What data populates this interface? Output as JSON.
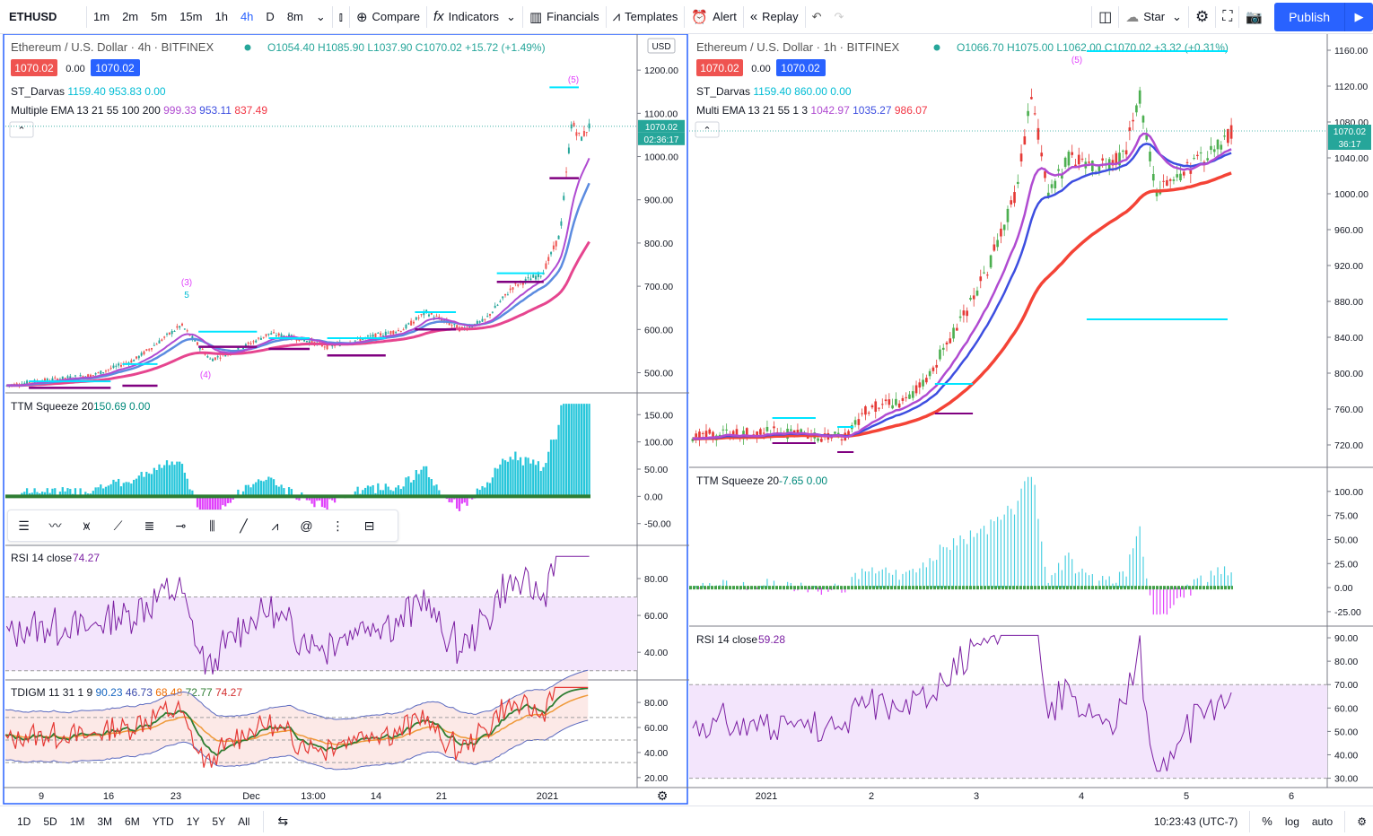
{
  "toolbar": {
    "symbol": "ETHUSD",
    "intervals": [
      "1m",
      "2m",
      "5m",
      "15m",
      "1h",
      "4h",
      "D",
      "8m"
    ],
    "active_interval": "4h",
    "compare": "Compare",
    "indicators": "Indicators",
    "financials": "Financials",
    "templates": "Templates",
    "alert": "Alert",
    "replay": "Replay",
    "star": "Star",
    "publish": "Publish"
  },
  "left": {
    "title": "Ethereum / U.S. Dollar · 4h · BITFINEX",
    "ohlc": {
      "o": "O1054.40",
      "h": "H1085.90",
      "l": "L1037.90",
      "c": "C1070.02",
      "chg": "+15.72 (+1.49%)"
    },
    "bid": "1070.02",
    "spread": "0.00",
    "ask": "1070.02",
    "darvas": {
      "name": "ST_Darvas",
      "v1": "1159.40",
      "v2": "953.83",
      "v3": "0.00"
    },
    "ema": {
      "name": "Multiple EMA 13 21 55 100 200",
      "v1": "999.33",
      "v2": "953.11",
      "v3": "837.49"
    },
    "currency": "USD",
    "price_tag": "1070.02",
    "time_tag": "02:36:17",
    "price_ticks": [
      "1200.00",
      "1100.00",
      "1000.00",
      "900.00",
      "800.00",
      "700.00",
      "600.00",
      "500.00"
    ],
    "labels": {
      "l5": "(5)",
      "l3": "(3)",
      "l3b": "5",
      "l4": "(4)"
    },
    "ttm": {
      "name": "TTM Squeeze 20",
      "v1": "150.69",
      "v2": "0.00",
      "ticks": [
        "150.00",
        "100.00",
        "50.00",
        "0.00",
        "-50.00"
      ]
    },
    "rsi": {
      "name": "RSI 14 close",
      "v1": "74.27",
      "ticks": [
        "80.00",
        "60.00",
        "40.00"
      ]
    },
    "tdi": {
      "name": "TDIGM 11 31 1 9",
      "v1": "90.23",
      "v2": "46.73",
      "v3": "68.48",
      "v4": "72.77",
      "v5": "74.27",
      "ticks": [
        "80.00",
        "60.00",
        "40.00",
        "20.00"
      ]
    },
    "time_ticks": [
      "9",
      "16",
      "23",
      "Dec",
      "13:00",
      "14",
      "21",
      "2021"
    ]
  },
  "right": {
    "title": "Ethereum / U.S. Dollar · 1h · BITFINEX",
    "ohlc": {
      "o": "O1066.70",
      "h": "H1075.00",
      "l": "L1062.00",
      "c": "C1070.02",
      "chg": "+3.32 (+0.31%)"
    },
    "bid": "1070.02",
    "spread": "0.00",
    "ask": "1070.02",
    "darvas": {
      "name": "ST_Darvas",
      "v1": "1159.40",
      "v2": "860.00",
      "v3": "0.00"
    },
    "ema": {
      "name": "Multi EMA 13 21 55 1 3",
      "v1": "1042.97",
      "v2": "1035.27",
      "v3": "986.07"
    },
    "price_tag": "1070.02",
    "time_tag": "36:17",
    "price_ticks": [
      "1160.00",
      "1120.00",
      "1080.00",
      "1040.00",
      "1000.00",
      "960.00",
      "920.00",
      "880.00",
      "840.00",
      "800.00",
      "760.00",
      "720.00"
    ],
    "labels": {
      "l5": "(5)"
    },
    "ttm": {
      "name": "TTM Squeeze 20",
      "v1": "-7.65",
      "v2": "0.00",
      "ticks": [
        "100.00",
        "75.00",
        "50.00",
        "25.00",
        "0.00",
        "-25.00"
      ]
    },
    "rsi": {
      "name": "RSI 14 close",
      "v1": "59.28",
      "ticks": [
        "90.00",
        "80.00",
        "70.00",
        "60.00",
        "50.00",
        "40.00",
        "30.00"
      ]
    },
    "time_ticks": [
      "2021",
      "2",
      "3",
      "4",
      "5",
      "6"
    ]
  },
  "bottombar": {
    "ranges": [
      "1D",
      "5D",
      "1M",
      "3M",
      "6M",
      "YTD",
      "1Y",
      "5Y",
      "All"
    ],
    "clock": "10:23:43 (UTC-7)",
    "pct": "%",
    "log": "log",
    "auto": "auto"
  },
  "colors": {
    "up": "#26a69a",
    "down": "#ef5350",
    "blue": "#2962ff",
    "cyan": "#00e5ff",
    "purple": "#800080",
    "ema1": "#b04bd1",
    "ema2": "#3d4ee0",
    "ema3": "#f23645"
  }
}
